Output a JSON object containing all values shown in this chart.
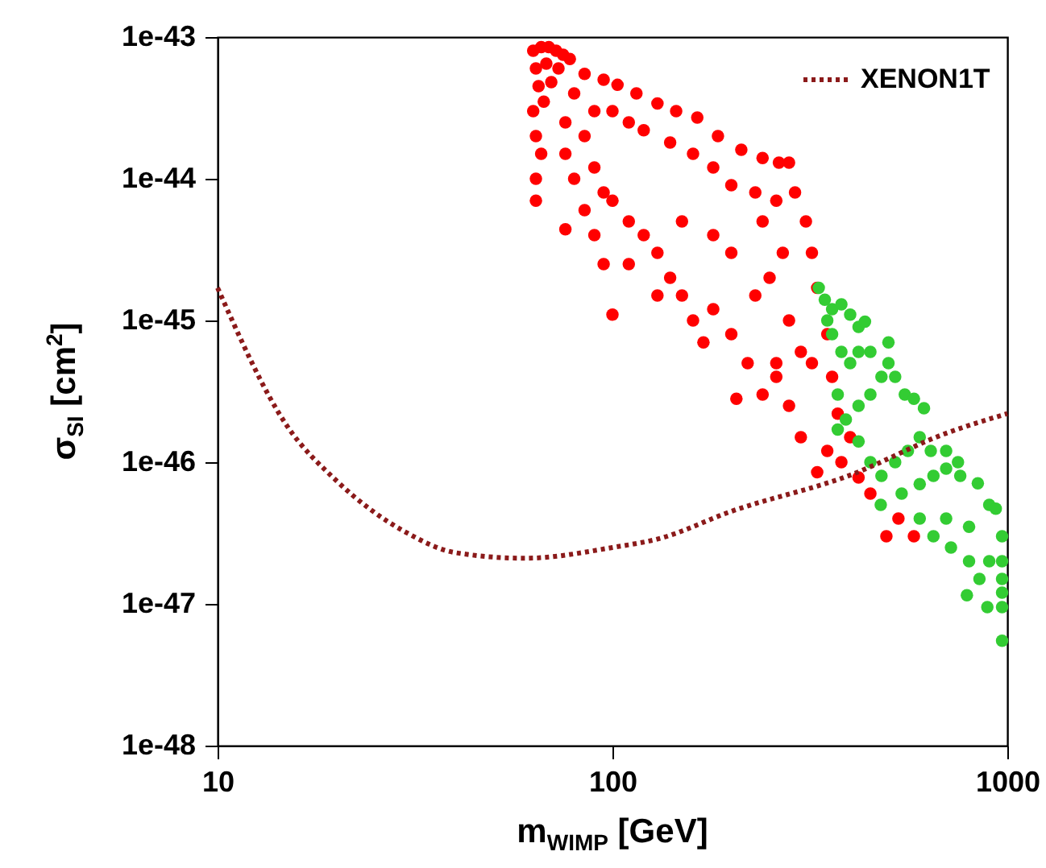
{
  "chart_data": {
    "type": "scatter",
    "xlabel": "m$_{WIMP}$ [GeV]",
    "ylabel": "σ$_{SI}$ [cm$^{2}$]",
    "log": "xy",
    "legend": "top right",
    "xlim": [
      10,
      1000
    ],
    "ylim": [
      1e-48,
      1e-43
    ],
    "xticks": [
      10,
      100,
      1000
    ],
    "yticks": [
      1e-48,
      1e-47,
      1e-46,
      1e-45,
      1e-44,
      1e-43
    ],
    "series": [
      {
        "color": "#ff0000",
        "marker": "circle",
        "x": [
          63,
          66,
          69,
          72,
          75,
          78,
          64,
          68,
          73,
          65,
          70,
          63,
          67,
          64,
          66,
          64,
          64,
          85,
          95,
          103,
          115,
          130,
          145,
          164,
          185,
          212,
          240,
          264,
          280,
          80,
          90,
          100,
          110,
          120,
          140,
          160,
          180,
          200,
          230,
          260,
          76,
          76,
          76,
          80,
          85,
          85,
          90,
          95,
          90,
          100,
          95,
          290,
          309,
          320,
          330,
          350,
          372,
          420,
          494,
          580,
          530,
          450,
          100,
          110,
          120,
          110,
          130,
          140,
          150,
          130,
          160,
          170,
          180,
          200,
          206,
          220,
          240,
          260,
          280,
          300,
          330,
          350,
          250,
          280,
          300,
          200,
          230,
          180,
          150,
          260,
          400,
          380,
          360,
          320,
          240,
          270
        ],
        "values": [
          8e-44,
          8.5e-44,
          8.5e-44,
          8e-44,
          7.5e-44,
          7e-44,
          6e-44,
          6.5e-44,
          6e-44,
          4.5e-44,
          4.8e-44,
          3e-44,
          3.5e-44,
          2e-44,
          1.5e-44,
          1e-44,
          7e-45,
          5.5e-44,
          5e-44,
          4.6e-44,
          4e-44,
          3.4e-44,
          3e-44,
          2.7e-44,
          2e-44,
          1.6e-44,
          1.4e-44,
          1.3e-44,
          1.3e-44,
          4e-44,
          3e-44,
          3e-44,
          2.5e-44,
          2.2e-44,
          1.8e-44,
          1.5e-44,
          1.2e-44,
          9e-45,
          8e-45,
          7e-45,
          4.4e-45,
          2.5e-44,
          1.5e-44,
          1e-44,
          6e-45,
          2e-44,
          1.2e-44,
          8e-45,
          4e-45,
          1.1e-45,
          2.5e-45,
          8e-45,
          5e-45,
          3e-45,
          1.7e-45,
          8e-46,
          2.2e-46,
          7.8e-47,
          3e-47,
          3e-47,
          4e-47,
          6e-47,
          7e-45,
          5e-45,
          4e-45,
          2.5e-45,
          3e-45,
          2e-45,
          1.5e-45,
          1.5e-45,
          1e-45,
          7e-46,
          1.2e-45,
          8e-46,
          2.8e-46,
          5e-46,
          3e-46,
          4e-46,
          2.5e-46,
          1.5e-46,
          8.5e-47,
          1.2e-46,
          2e-45,
          1e-45,
          6e-46,
          3e-45,
          1.5e-45,
          4e-45,
          5e-45,
          5e-46,
          1.5e-46,
          1e-46,
          4e-46,
          5e-46,
          5e-45,
          3e-45
        ]
      },
      {
        "color": "#33cc33",
        "marker": "circle",
        "x": [
          333,
          345,
          360,
          380,
          400,
          420,
          436,
          360,
          380,
          400,
          372,
          372,
          390,
          420,
          450,
          480,
          500,
          520,
          550,
          580,
          615,
          600,
          560,
          520,
          480,
          450,
          420,
          478,
          540,
          600,
          650,
          700,
          760,
          842,
          900,
          970,
          970,
          970,
          970,
          970,
          935,
          970,
          890,
          790,
          850,
          900,
          800,
          720,
          650,
          600,
          700,
          800,
          450,
          500,
          420,
          350,
          640,
          700,
          750
        ],
        "values": [
          1.7e-45,
          1.4e-45,
          1.2e-45,
          1.3e-45,
          1.1e-45,
          9e-46,
          9.8e-46,
          8e-46,
          6e-46,
          5e-46,
          3e-46,
          1.7e-46,
          2e-46,
          2.5e-46,
          3e-46,
          4e-46,
          5e-46,
          4e-46,
          3e-46,
          2.8e-46,
          2.4e-46,
          1.5e-46,
          1.2e-46,
          1e-46,
          8e-47,
          1e-46,
          1.4e-46,
          5e-47,
          6e-47,
          7e-47,
          8e-47,
          9e-47,
          8e-47,
          7.1e-47,
          5e-47,
          3e-47,
          2e-47,
          1.5e-47,
          1.2e-47,
          9.5e-48,
          4.7e-47,
          5.5e-48,
          9.5e-48,
          1.15e-47,
          1.5e-47,
          2e-47,
          2e-47,
          2.5e-47,
          3e-47,
          4e-47,
          4e-47,
          3.5e-47,
          6e-46,
          7e-46,
          6e-46,
          1e-45,
          1.2e-46,
          1.2e-46,
          1e-46
        ]
      },
      {
        "name": "XENON1T",
        "type": "line",
        "line_style": "dotted",
        "color": "#8b1a1a",
        "x": [
          10,
          15,
          20,
          30,
          40,
          60,
          100,
          132,
          200,
          400,
          700,
          1000
        ],
        "values": [
          1.7e-45,
          1.8e-46,
          7.4e-47,
          3.2e-47,
          2.3e-47,
          2.1e-47,
          2.5e-47,
          2.9e-47,
          4.5e-47,
          8.1e-47,
          1.6e-46,
          2.2e-46
        ]
      }
    ]
  }
}
